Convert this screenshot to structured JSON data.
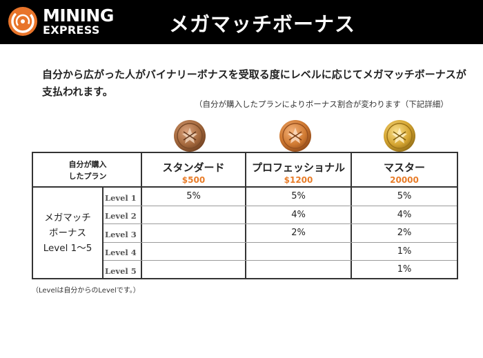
{
  "header": {
    "logo_line1": "MINING",
    "logo_line2": "EXPRESS",
    "title": "メガマッチボーナス"
  },
  "colors": {
    "header_bg": "#000000",
    "logo_orange": "#e8742a",
    "price_orange": "#e87c28",
    "coin_bronze": "#a66a3e",
    "coin_copper": "#d07a32",
    "coin_gold": "#d6a632"
  },
  "intro": {
    "text": "自分から広がった人がバイナリーボナスを受取る度にレベルに応じてメガマッチボーナスが支払われます。",
    "note": "（自分が購入したプランによりボーナス割合が変わります（下記詳細）"
  },
  "table": {
    "header_left_line1": "自分が購入",
    "header_left_line2": "したプラン",
    "plans": [
      {
        "name": "スタンダード",
        "price": "$500",
        "coin_icon": "bronze-coin-icon"
      },
      {
        "name": "プロフェッショナル",
        "price": "$1200",
        "coin_icon": "copper-coin-icon"
      },
      {
        "name": "マスター",
        "price": "20000",
        "coin_icon": "gold-coin-icon"
      }
    ],
    "row_label_line1": "メガマッチ",
    "row_label_line2": "ボーナス",
    "row_label_line3": "Level 1〜5",
    "levels": [
      "Level 1",
      "Level 2",
      "Level 3",
      "Level 4",
      "Level 5"
    ],
    "values": [
      [
        "5%",
        "5%",
        "5%"
      ],
      [
        "",
        "4%",
        "4%"
      ],
      [
        "",
        "2%",
        "2%"
      ],
      [
        "",
        "",
        "1%"
      ],
      [
        "",
        "",
        "1%"
      ]
    ]
  },
  "footnote": "（Levelは自分からのLevelです。）"
}
